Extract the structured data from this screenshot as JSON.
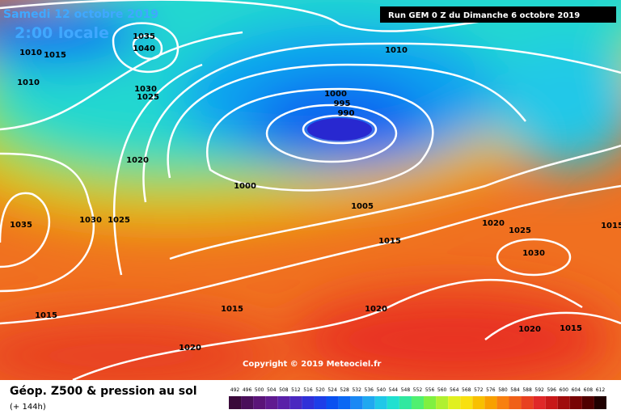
{
  "header": {
    "date": "Samedi 12 octobre 2019",
    "time": "2:00 locale",
    "run": "Run GEM 0 Z du Dimanche 6 octobre 2019"
  },
  "copyright": "Copyright © 2019 Meteociel.fr",
  "footer": {
    "title": "Géop. Z500 & pression au sol",
    "lead": "(+ 144h)"
  },
  "isobar_labels": [
    1035,
    1040,
    1010,
    1015,
    1010,
    1030,
    1025,
    1010,
    1000,
    995,
    990,
    1020,
    1000,
    1030,
    1025,
    1035,
    1005,
    1015,
    1020,
    1025,
    1030,
    1015,
    1015,
    1020,
    1015,
    1020,
    1020,
    1015
  ],
  "legend": {
    "values": [
      492,
      496,
      500,
      504,
      508,
      512,
      516,
      520,
      524,
      528,
      532,
      536,
      540,
      544,
      548,
      552,
      556,
      560,
      564,
      568,
      572,
      576,
      580,
      584,
      588,
      592,
      596,
      600,
      604,
      608,
      612
    ],
    "colors": [
      "#3a0a3a",
      "#4a0f5a",
      "#5a1478",
      "#601a90",
      "#5a20a8",
      "#4a28c0",
      "#3030d8",
      "#1e3ee8",
      "#0a50f0",
      "#0a68f4",
      "#1a88f4",
      "#20a8f0",
      "#20c8e8",
      "#20e0d0",
      "#30e8a0",
      "#50f070",
      "#80f040",
      "#b0f030",
      "#e0f020",
      "#f8e010",
      "#f8c000",
      "#f8a000",
      "#f88010",
      "#f06018",
      "#e84020",
      "#e02828",
      "#c81818",
      "#a00c0c",
      "#780404",
      "#500000",
      "#200000"
    ]
  }
}
